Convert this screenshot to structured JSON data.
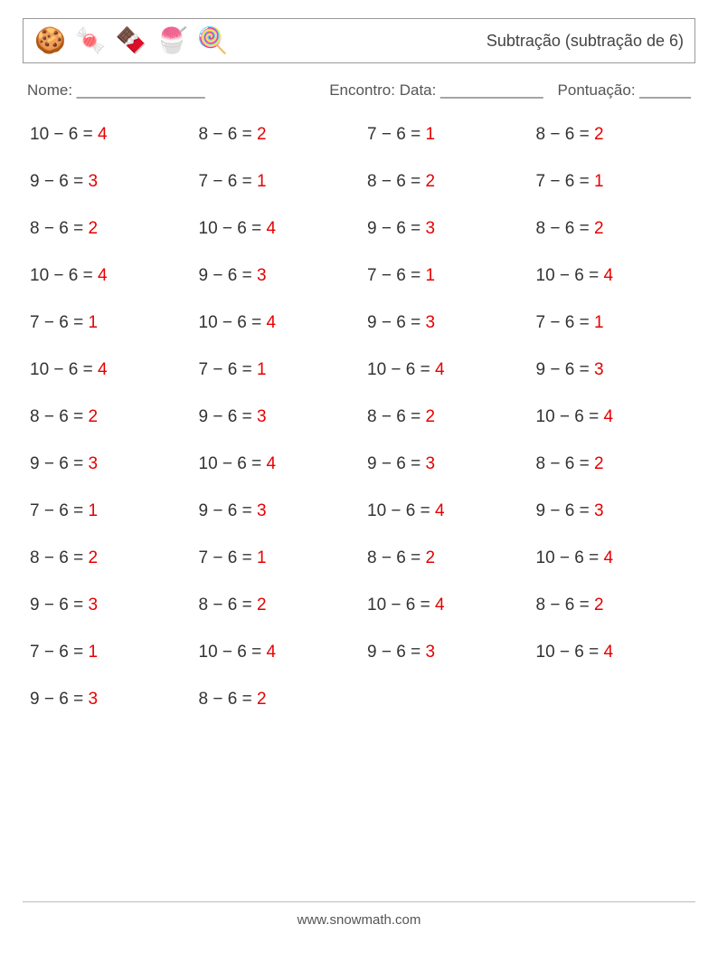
{
  "header": {
    "icons": [
      "🍪",
      "🍬",
      "🍫",
      "🍧",
      "🍭"
    ],
    "title": "Subtração (subtração de 6)"
  },
  "info": {
    "nome_label": "Nome: _______________",
    "encontro_label": "Encontro: Data: ____________",
    "pontuacao_label": "Pontuação: ______"
  },
  "styling": {
    "problem_color": "#333333",
    "answer_color": "#e60000",
    "border_color": "#999999",
    "background_color": "#ffffff",
    "font_size_problem": 19,
    "font_size_title": 18,
    "font_size_info": 17,
    "columns": 4,
    "row_gap": 30
  },
  "problems": [
    {
      "a": 10,
      "b": 6,
      "r": 4
    },
    {
      "a": 8,
      "b": 6,
      "r": 2
    },
    {
      "a": 7,
      "b": 6,
      "r": 1
    },
    {
      "a": 8,
      "b": 6,
      "r": 2
    },
    {
      "a": 9,
      "b": 6,
      "r": 3
    },
    {
      "a": 7,
      "b": 6,
      "r": 1
    },
    {
      "a": 8,
      "b": 6,
      "r": 2
    },
    {
      "a": 7,
      "b": 6,
      "r": 1
    },
    {
      "a": 8,
      "b": 6,
      "r": 2
    },
    {
      "a": 10,
      "b": 6,
      "r": 4
    },
    {
      "a": 9,
      "b": 6,
      "r": 3
    },
    {
      "a": 8,
      "b": 6,
      "r": 2
    },
    {
      "a": 10,
      "b": 6,
      "r": 4
    },
    {
      "a": 9,
      "b": 6,
      "r": 3
    },
    {
      "a": 7,
      "b": 6,
      "r": 1
    },
    {
      "a": 10,
      "b": 6,
      "r": 4
    },
    {
      "a": 7,
      "b": 6,
      "r": 1
    },
    {
      "a": 10,
      "b": 6,
      "r": 4
    },
    {
      "a": 9,
      "b": 6,
      "r": 3
    },
    {
      "a": 7,
      "b": 6,
      "r": 1
    },
    {
      "a": 10,
      "b": 6,
      "r": 4
    },
    {
      "a": 7,
      "b": 6,
      "r": 1
    },
    {
      "a": 10,
      "b": 6,
      "r": 4
    },
    {
      "a": 9,
      "b": 6,
      "r": 3
    },
    {
      "a": 8,
      "b": 6,
      "r": 2
    },
    {
      "a": 9,
      "b": 6,
      "r": 3
    },
    {
      "a": 8,
      "b": 6,
      "r": 2
    },
    {
      "a": 10,
      "b": 6,
      "r": 4
    },
    {
      "a": 9,
      "b": 6,
      "r": 3
    },
    {
      "a": 10,
      "b": 6,
      "r": 4
    },
    {
      "a": 9,
      "b": 6,
      "r": 3
    },
    {
      "a": 8,
      "b": 6,
      "r": 2
    },
    {
      "a": 7,
      "b": 6,
      "r": 1
    },
    {
      "a": 9,
      "b": 6,
      "r": 3
    },
    {
      "a": 10,
      "b": 6,
      "r": 4
    },
    {
      "a": 9,
      "b": 6,
      "r": 3
    },
    {
      "a": 8,
      "b": 6,
      "r": 2
    },
    {
      "a": 7,
      "b": 6,
      "r": 1
    },
    {
      "a": 8,
      "b": 6,
      "r": 2
    },
    {
      "a": 10,
      "b": 6,
      "r": 4
    },
    {
      "a": 9,
      "b": 6,
      "r": 3
    },
    {
      "a": 8,
      "b": 6,
      "r": 2
    },
    {
      "a": 10,
      "b": 6,
      "r": 4
    },
    {
      "a": 8,
      "b": 6,
      "r": 2
    },
    {
      "a": 7,
      "b": 6,
      "r": 1
    },
    {
      "a": 10,
      "b": 6,
      "r": 4
    },
    {
      "a": 9,
      "b": 6,
      "r": 3
    },
    {
      "a": 10,
      "b": 6,
      "r": 4
    },
    {
      "a": 9,
      "b": 6,
      "r": 3
    },
    {
      "a": 8,
      "b": 6,
      "r": 2
    }
  ],
  "footer": {
    "url": "www.snowmath.com"
  }
}
